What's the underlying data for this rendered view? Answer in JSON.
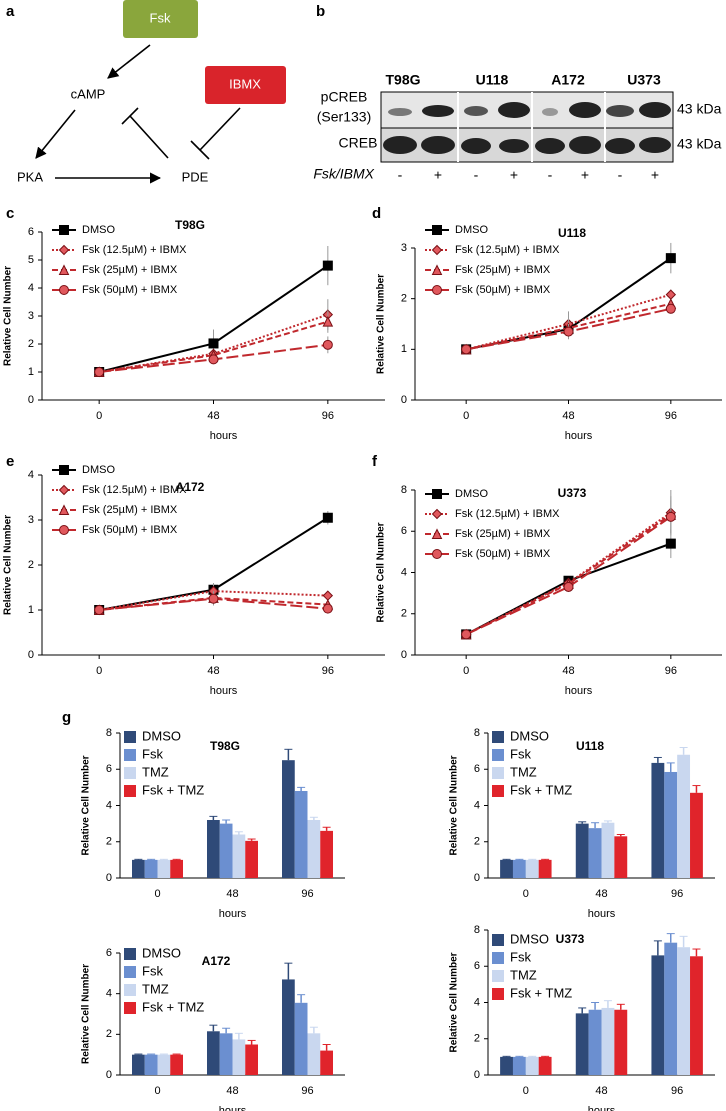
{
  "panel_labels": [
    "a",
    "b",
    "c",
    "d",
    "e",
    "f",
    "g"
  ],
  "diagram": {
    "nodes": [
      "Fsk",
      "cAMP",
      "IBMX",
      "PKA",
      "PDE"
    ]
  },
  "blot": {
    "cell_lines": [
      "T98G",
      "U118",
      "A172",
      "U373"
    ],
    "rows": [
      {
        "label": "pCREB",
        "sublabel": "(Ser133)",
        "size": "43 kDa"
      },
      {
        "label": "CREB",
        "size": "43 kDa"
      }
    ],
    "treatment_label": "Fsk/IBMX",
    "treatment": [
      "-",
      "+",
      "-",
      "+",
      "-",
      "+",
      "-",
      "+"
    ]
  },
  "chart_data": [
    {
      "type": "line",
      "title": "T98G",
      "xlabel": "hours",
      "ylabel": "Relative Cell Number",
      "legend": "upper left",
      "x": [
        0,
        48,
        96
      ],
      "xlim": [
        -24,
        120
      ],
      "xticks": [
        0,
        48,
        96
      ],
      "ylim": [
        0,
        6
      ],
      "yticks": [
        0,
        1,
        2,
        3,
        4,
        5,
        6
      ],
      "series": [
        {
          "name": "DMSO",
          "color": "#000000",
          "dash": "solid",
          "marker": "square",
          "values": [
            1,
            2.02,
            4.8
          ],
          "errors": [
            0,
            0.5,
            0.7
          ]
        },
        {
          "name": "Fsk (12.5µM) + IBMX",
          "color": "#c0282d",
          "dash": "dotted",
          "marker": "diamond",
          "values": [
            1,
            1.65,
            3.05
          ],
          "errors": [
            0,
            0.15,
            0.55
          ]
        },
        {
          "name": "Fsk (25µM) + IBMX",
          "color": "#c0282d",
          "dash": "dashed",
          "marker": "triangle",
          "values": [
            1,
            1.6,
            2.8
          ],
          "errors": [
            0,
            0.15,
            0.4
          ]
        },
        {
          "name": "Fsk (50µM) + IBMX",
          "color": "#c0282d",
          "dash": "longdash",
          "marker": "circle",
          "values": [
            1,
            1.45,
            1.97
          ],
          "errors": [
            0,
            0.15,
            0.3
          ]
        }
      ]
    },
    {
      "type": "line",
      "title": "U118",
      "xlabel": "hours",
      "ylabel": "Relative Cell Number",
      "legend": "upper left",
      "x": [
        0,
        48,
        96
      ],
      "xlim": [
        -24,
        120
      ],
      "xticks": [
        0,
        48,
        96
      ],
      "ylim": [
        0,
        3
      ],
      "yticks": [
        0,
        1,
        2,
        3
      ],
      "series": [
        {
          "name": "DMSO",
          "color": "#000000",
          "dash": "solid",
          "marker": "square",
          "values": [
            1,
            1.4,
            2.8
          ],
          "errors": [
            0,
            0.15,
            0.3
          ]
        },
        {
          "name": "Fsk (12.5µM) + IBMX",
          "color": "#c0282d",
          "dash": "dotted",
          "marker": "diamond",
          "values": [
            1,
            1.5,
            2.08
          ],
          "errors": [
            0,
            0.25,
            0.1
          ]
        },
        {
          "name": "Fsk (25µM) + IBMX",
          "color": "#c0282d",
          "dash": "dashed",
          "marker": "triangle",
          "values": [
            1,
            1.42,
            1.9
          ],
          "errors": [
            0,
            0.2,
            0.1
          ]
        },
        {
          "name": "Fsk (50µM) + IBMX",
          "color": "#c0282d",
          "dash": "longdash",
          "marker": "circle",
          "values": [
            1,
            1.35,
            1.8
          ],
          "errors": [
            0,
            0.15,
            0.1
          ]
        }
      ]
    },
    {
      "type": "line",
      "title": "A172",
      "xlabel": "hours",
      "ylabel": "Relative Cell Number",
      "legend": "upper left",
      "x": [
        0,
        48,
        96
      ],
      "xlim": [
        -24,
        120
      ],
      "xticks": [
        0,
        48,
        96
      ],
      "ylim": [
        0,
        4
      ],
      "yticks": [
        0,
        1,
        2,
        3,
        4
      ],
      "series": [
        {
          "name": "DMSO",
          "color": "#000000",
          "dash": "solid",
          "marker": "square",
          "values": [
            1,
            1.45,
            3.05
          ],
          "errors": [
            0,
            0.15,
            0.15
          ]
        },
        {
          "name": "Fsk (12.5µM) + IBMX",
          "color": "#c0282d",
          "dash": "dotted",
          "marker": "diamond",
          "values": [
            1,
            1.42,
            1.32
          ],
          "errors": [
            0,
            0.15,
            0.05
          ]
        },
        {
          "name": "Fsk (25µM) + IBMX",
          "color": "#c0282d",
          "dash": "dashed",
          "marker": "triangle",
          "values": [
            1,
            1.27,
            1.12
          ],
          "errors": [
            0,
            0.15,
            0.05
          ]
        },
        {
          "name": "Fsk (50µM) + IBMX",
          "color": "#c0282d",
          "dash": "longdash",
          "marker": "circle",
          "values": [
            1,
            1.25,
            1.03
          ],
          "errors": [
            0,
            0.15,
            0.05
          ]
        }
      ]
    },
    {
      "type": "line",
      "title": "U373",
      "xlabel": "hours",
      "ylabel": "Relative Cell Number",
      "legend": "upper left",
      "x": [
        0,
        48,
        96
      ],
      "xlim": [
        -24,
        120
      ],
      "xticks": [
        0,
        48,
        96
      ],
      "ylim": [
        0,
        8
      ],
      "yticks": [
        0,
        2,
        4,
        6,
        8
      ],
      "series": [
        {
          "name": "DMSO",
          "color": "#000000",
          "dash": "solid",
          "marker": "square",
          "values": [
            1,
            3.6,
            5.4
          ],
          "errors": [
            0,
            0.2,
            0.7
          ]
        },
        {
          "name": "Fsk (12.5µM) + IBMX",
          "color": "#c0282d",
          "dash": "dotted",
          "marker": "diamond",
          "values": [
            1,
            3.5,
            6.9
          ],
          "errors": [
            0,
            0.2,
            1.1
          ]
        },
        {
          "name": "Fsk (25µM) + IBMX",
          "color": "#c0282d",
          "dash": "dashed",
          "marker": "triangle",
          "values": [
            1,
            3.45,
            6.8
          ],
          "errors": [
            0,
            0.2,
            0.9
          ]
        },
        {
          "name": "Fsk (50µM) + IBMX",
          "color": "#c0282d",
          "dash": "longdash",
          "marker": "circle",
          "values": [
            1,
            3.3,
            6.7
          ],
          "errors": [
            0,
            0.2,
            0.8
          ]
        }
      ]
    },
    {
      "type": "bar",
      "title": "T98G",
      "xlabel": "hours",
      "ylabel": "Relative Cell Number",
      "legend": "upper left",
      "categories": [
        "0",
        "48",
        "96"
      ],
      "ylim": [
        0,
        8
      ],
      "yticks": [
        0,
        2,
        4,
        6,
        8
      ],
      "series": [
        {
          "name": "DMSO",
          "color": "#2f4a78",
          "values": [
            1,
            3.2,
            6.5
          ],
          "errors": [
            0.03,
            0.2,
            0.6
          ]
        },
        {
          "name": "Fsk",
          "color": "#6b8fd0",
          "values": [
            1,
            3.0,
            4.8
          ],
          "errors": [
            0.03,
            0.2,
            0.2
          ]
        },
        {
          "name": "TMZ",
          "color": "#c9d7ef",
          "values": [
            1,
            2.4,
            3.2
          ],
          "errors": [
            0.03,
            0.15,
            0.15
          ]
        },
        {
          "name": "Fsk + TMZ",
          "color": "#e0242b",
          "values": [
            1,
            2.05,
            2.6
          ],
          "errors": [
            0.03,
            0.1,
            0.2
          ]
        }
      ]
    },
    {
      "type": "bar",
      "title": "U118",
      "xlabel": "hours",
      "ylabel": "Relative Cell Number",
      "legend": "upper left",
      "categories": [
        "0",
        "48",
        "96"
      ],
      "ylim": [
        0,
        8
      ],
      "yticks": [
        0,
        2,
        4,
        6,
        8
      ],
      "series": [
        {
          "name": "DMSO",
          "color": "#2f4a78",
          "values": [
            1,
            3.0,
            6.35
          ],
          "errors": [
            0.03,
            0.1,
            0.3
          ]
        },
        {
          "name": "Fsk",
          "color": "#6b8fd0",
          "values": [
            1,
            2.75,
            5.85
          ],
          "errors": [
            0.03,
            0.3,
            0.5
          ]
        },
        {
          "name": "TMZ",
          "color": "#c9d7ef",
          "values": [
            1,
            3.05,
            6.8
          ],
          "errors": [
            0.03,
            0.1,
            0.4
          ]
        },
        {
          "name": "Fsk + TMZ",
          "color": "#e0242b",
          "values": [
            1,
            2.3,
            4.7
          ],
          "errors": [
            0.03,
            0.1,
            0.4
          ]
        }
      ]
    },
    {
      "type": "bar",
      "title": "A172",
      "xlabel": "hours",
      "ylabel": "Relative Cell Number",
      "legend": "upper left",
      "categories": [
        "0",
        "48",
        "96"
      ],
      "ylim": [
        0,
        6
      ],
      "yticks": [
        0,
        2,
        4,
        6
      ],
      "series": [
        {
          "name": "DMSO",
          "color": "#2f4a78",
          "values": [
            1,
            2.15,
            4.7
          ],
          "errors": [
            0.03,
            0.3,
            0.8
          ]
        },
        {
          "name": "Fsk",
          "color": "#6b8fd0",
          "values": [
            1,
            2.05,
            3.55
          ],
          "errors": [
            0.03,
            0.25,
            0.4
          ]
        },
        {
          "name": "TMZ",
          "color": "#c9d7ef",
          "values": [
            1,
            1.75,
            2.05
          ],
          "errors": [
            0.03,
            0.3,
            0.3
          ]
        },
        {
          "name": "Fsk + TMZ",
          "color": "#e0242b",
          "values": [
            1,
            1.5,
            1.2
          ],
          "errors": [
            0.03,
            0.2,
            0.3
          ]
        }
      ]
    },
    {
      "type": "bar",
      "title": "U373",
      "xlabel": "hours",
      "ylabel": "Relative Cell Number",
      "legend": "upper left",
      "categories": [
        "0",
        "48",
        "96"
      ],
      "ylim": [
        0,
        8
      ],
      "yticks": [
        0,
        2,
        4,
        6,
        8
      ],
      "series": [
        {
          "name": "DMSO",
          "color": "#2f4a78",
          "values": [
            1,
            3.4,
            6.6
          ],
          "errors": [
            0.03,
            0.3,
            0.8
          ]
        },
        {
          "name": "Fsk",
          "color": "#6b8fd0",
          "values": [
            1,
            3.6,
            7.3
          ],
          "errors": [
            0.03,
            0.4,
            0.5
          ]
        },
        {
          "name": "TMZ",
          "color": "#c9d7ef",
          "values": [
            1,
            3.7,
            7.05
          ],
          "errors": [
            0.03,
            0.4,
            0.6
          ]
        },
        {
          "name": "Fsk + TMZ",
          "color": "#e0242b",
          "values": [
            1,
            3.6,
            6.55
          ],
          "errors": [
            0.03,
            0.3,
            0.4
          ]
        }
      ]
    }
  ]
}
